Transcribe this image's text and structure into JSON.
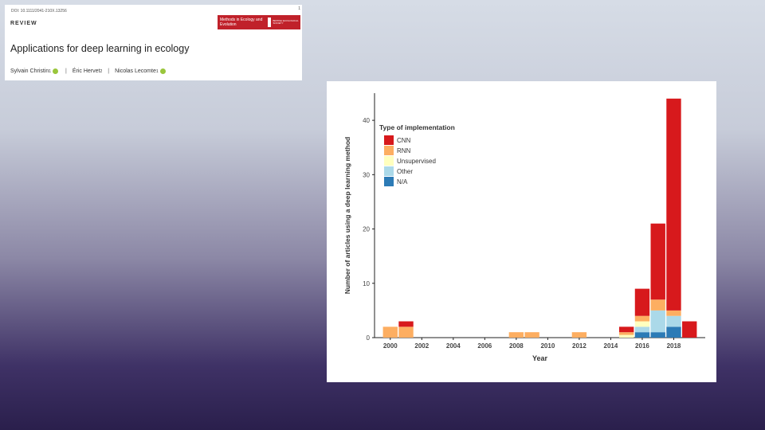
{
  "paper": {
    "doi": "DOI: 10.1111/2041-210X.13256",
    "page_mark": "1",
    "section": "REVIEW",
    "journal": "Methods in Ecology and Evolution",
    "society": "BRITISH ECOLOGICAL SOCIETY",
    "title": "Applications for deep learning in ecology",
    "authors": [
      {
        "name": "Sylvain Christin",
        "sup": "1"
      },
      {
        "name": "Éric Hervet",
        "sup": "2"
      },
      {
        "name": "Nicolas Lecomte",
        "sup": "1"
      }
    ],
    "separator": "|"
  },
  "colors": {
    "CNN": "#d7191c",
    "RNN": "#fdae61",
    "Unsupervised": "#ffffbf",
    "Other": "#abd9e9",
    "N/A": "#2c7bb6"
  },
  "chart_data": {
    "type": "bar",
    "stacked": true,
    "xlabel": "Year",
    "ylabel": "Number of articles using a deep learning method",
    "ylim": [
      0,
      45
    ],
    "yticks": [
      0,
      10,
      20,
      30,
      40
    ],
    "xlim": [
      1999,
      2020
    ],
    "xticks": [
      2000,
      2002,
      2004,
      2006,
      2008,
      2010,
      2012,
      2014,
      2016,
      2018
    ],
    "legend_title": "Type of implementation",
    "legend_position": "top-left",
    "years": [
      2000,
      2001,
      2008,
      2009,
      2012,
      2015,
      2016,
      2017,
      2018,
      2019
    ],
    "series": [
      {
        "name": "N/A",
        "values": [
          0,
          0,
          0,
          0,
          0,
          0,
          1,
          1,
          2,
          0
        ]
      },
      {
        "name": "Other",
        "values": [
          0,
          0,
          0,
          0,
          0,
          0,
          1,
          4,
          2,
          0
        ]
      },
      {
        "name": "Unsupervised",
        "values": [
          0,
          0,
          0,
          0,
          0,
          0.5,
          1,
          0,
          0,
          0
        ]
      },
      {
        "name": "RNN",
        "values": [
          2,
          2,
          1,
          1,
          1,
          0.5,
          1,
          2,
          1,
          0
        ]
      },
      {
        "name": "CNN",
        "values": [
          0,
          1,
          0,
          0,
          0,
          1,
          5,
          14,
          39,
          3
        ]
      }
    ],
    "legend_order": [
      "CNN",
      "RNN",
      "Unsupervised",
      "Other",
      "N/A"
    ]
  }
}
